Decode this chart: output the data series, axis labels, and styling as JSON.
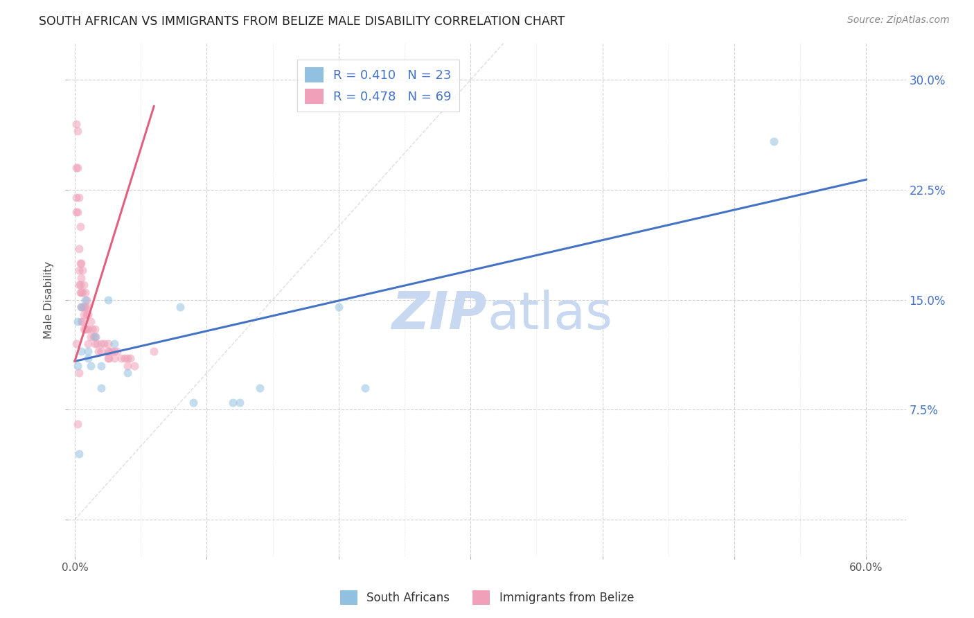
{
  "title": "SOUTH AFRICAN VS IMMIGRANTS FROM BELIZE MALE DISABILITY CORRELATION CHART",
  "source": "Source: ZipAtlas.com",
  "ylabel": "Male Disability",
  "x_ticks": [
    0.0,
    0.1,
    0.2,
    0.3,
    0.4,
    0.5,
    0.6
  ],
  "x_tick_labels_show": [
    "0.0%",
    "",
    "",
    "",
    "",
    "",
    "60.0%"
  ],
  "x_minor_ticks": [
    0.05,
    0.15,
    0.25,
    0.35,
    0.45,
    0.55
  ],
  "y_ticks": [
    0.0,
    0.075,
    0.15,
    0.225,
    0.3
  ],
  "y_tick_labels_right": [
    "",
    "7.5%",
    "15.0%",
    "22.5%",
    "30.0%"
  ],
  "xlim": [
    -0.005,
    0.63
  ],
  "ylim": [
    -0.025,
    0.325
  ],
  "blue_scatter_x": [
    0.002,
    0.002,
    0.005,
    0.005,
    0.008,
    0.01,
    0.01,
    0.012,
    0.015,
    0.02,
    0.02,
    0.025,
    0.03,
    0.04,
    0.08,
    0.09,
    0.12,
    0.125,
    0.14,
    0.2,
    0.22,
    0.53,
    0.003
  ],
  "blue_scatter_y": [
    0.135,
    0.105,
    0.145,
    0.115,
    0.15,
    0.115,
    0.11,
    0.105,
    0.125,
    0.105,
    0.09,
    0.15,
    0.12,
    0.1,
    0.145,
    0.08,
    0.08,
    0.08,
    0.09,
    0.145,
    0.09,
    0.258,
    0.045
  ],
  "pink_scatter_x": [
    0.001,
    0.001,
    0.001,
    0.001,
    0.001,
    0.002,
    0.002,
    0.002,
    0.002,
    0.003,
    0.003,
    0.003,
    0.003,
    0.003,
    0.004,
    0.004,
    0.004,
    0.004,
    0.005,
    0.005,
    0.005,
    0.005,
    0.005,
    0.006,
    0.006,
    0.006,
    0.006,
    0.007,
    0.007,
    0.007,
    0.007,
    0.008,
    0.008,
    0.008,
    0.009,
    0.009,
    0.009,
    0.01,
    0.01,
    0.01,
    0.01,
    0.012,
    0.012,
    0.013,
    0.014,
    0.015,
    0.015,
    0.016,
    0.017,
    0.018,
    0.02,
    0.02,
    0.022,
    0.025,
    0.025,
    0.025,
    0.026,
    0.026,
    0.028,
    0.03,
    0.03,
    0.032,
    0.035,
    0.038,
    0.04,
    0.04,
    0.042,
    0.045,
    0.06
  ],
  "pink_scatter_y": [
    0.27,
    0.24,
    0.22,
    0.21,
    0.12,
    0.265,
    0.24,
    0.21,
    0.065,
    0.22,
    0.185,
    0.17,
    0.16,
    0.1,
    0.2,
    0.175,
    0.16,
    0.155,
    0.175,
    0.165,
    0.155,
    0.145,
    0.135,
    0.17,
    0.155,
    0.145,
    0.135,
    0.16,
    0.145,
    0.14,
    0.13,
    0.155,
    0.145,
    0.13,
    0.15,
    0.14,
    0.13,
    0.145,
    0.14,
    0.13,
    0.12,
    0.135,
    0.125,
    0.13,
    0.125,
    0.13,
    0.12,
    0.125,
    0.12,
    0.115,
    0.12,
    0.115,
    0.12,
    0.12,
    0.115,
    0.11,
    0.115,
    0.11,
    0.115,
    0.115,
    0.11,
    0.115,
    0.11,
    0.11,
    0.11,
    0.105,
    0.11,
    0.105,
    0.115
  ],
  "blue_line_x": [
    0.0,
    0.6
  ],
  "blue_line_y": [
    0.108,
    0.232
  ],
  "pink_line_x": [
    0.0,
    0.06
  ],
  "pink_line_y": [
    0.108,
    0.282
  ],
  "ref_line_x": [
    0.0,
    0.325
  ],
  "ref_line_y": [
    0.0,
    0.325
  ],
  "scatter_size": 75,
  "scatter_alpha": 0.55,
  "blue_color": "#92c0e0",
  "blue_line_color": "#4472c4",
  "pink_color": "#f0a0b8",
  "pink_line_color": "#e06080",
  "ref_line_color": "#c8c8c8",
  "grid_color": "#d0d0d0",
  "watermark_color": "#c8d8f0",
  "bottom_labels": [
    "South Africans",
    "Immigrants from Belize"
  ],
  "legend_label_1": "R = 0.410   N = 23",
  "legend_label_2": "R = 0.478   N = 69",
  "tick_label_color": "#4472c4",
  "axis_label_color": "#555555"
}
